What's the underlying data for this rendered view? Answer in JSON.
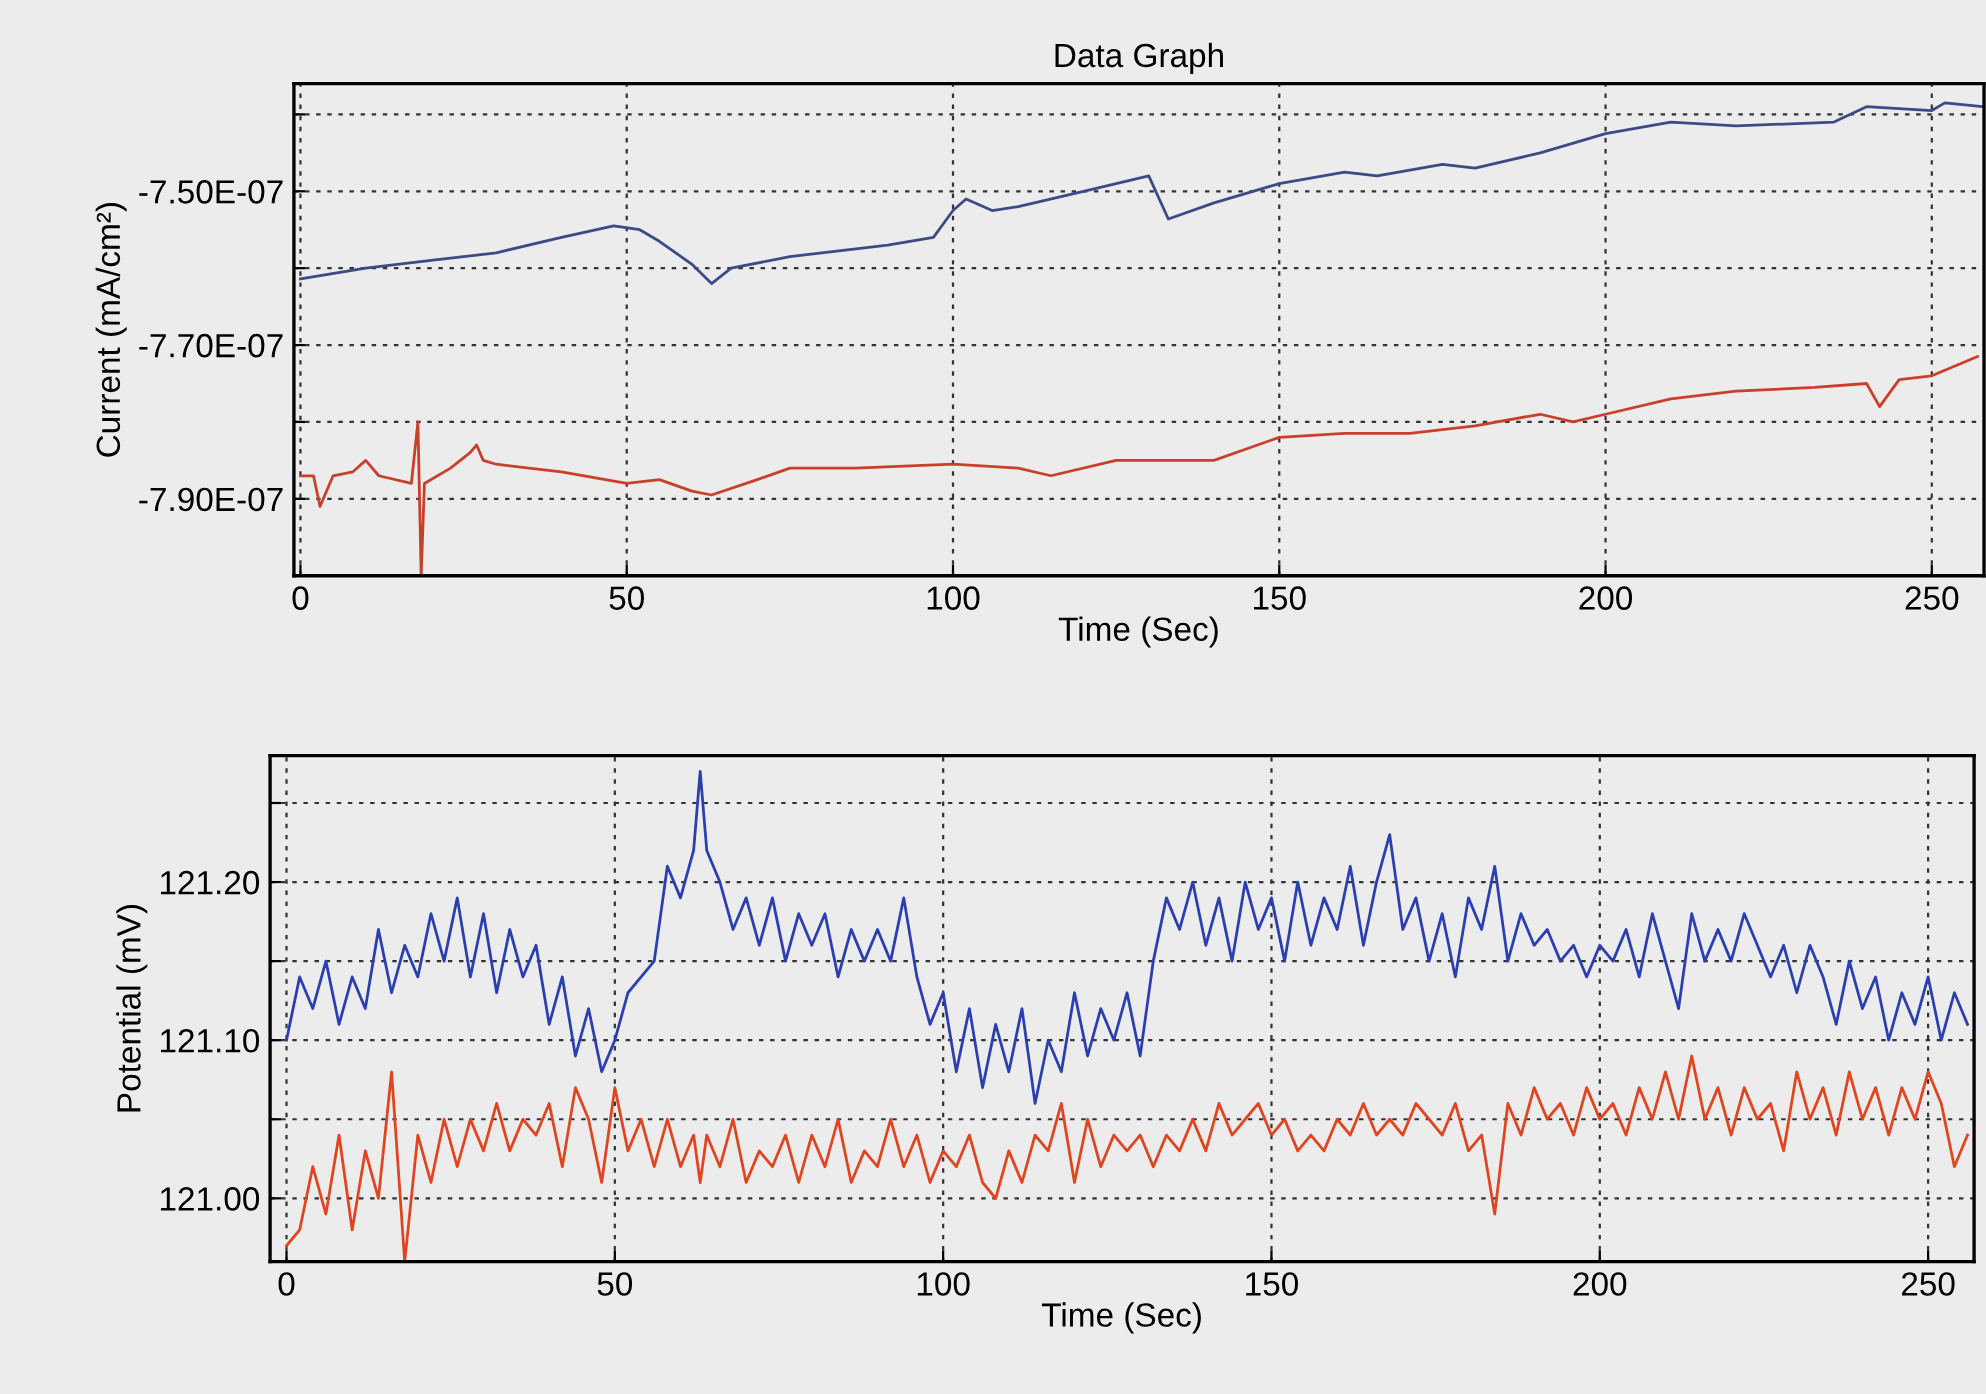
{
  "chart_data": [
    {
      "type": "line",
      "title": "Data Graph",
      "xlabel": "Time (Sec)",
      "ylabel": "Current (mA/cm²)",
      "grid": true,
      "xlim": [
        -1,
        258
      ],
      "xticks": [
        0,
        50,
        100,
        150,
        200,
        250
      ],
      "ylim": [
        -8e-07,
        -7.36e-07
      ],
      "yticks": [
        {
          "value": -7.9e-07,
          "label": "-7.90E-07"
        },
        {
          "value": -7.8e-07,
          "label": null
        },
        {
          "value": -7.7e-07,
          "label": "-7.70E-07"
        },
        {
          "value": -7.6e-07,
          "label": null
        },
        {
          "value": -7.5e-07,
          "label": "-7.50E-07"
        },
        {
          "value": -7.4e-07,
          "label": null
        }
      ],
      "series": [
        {
          "color": "#3c4a86",
          "x": [
            0,
            10,
            20,
            30,
            40,
            48,
            52,
            55,
            60,
            63,
            66,
            75,
            90,
            97,
            100,
            102,
            106,
            110,
            120,
            130,
            133,
            140,
            150,
            160,
            165,
            175,
            180,
            190,
            200,
            210,
            220,
            235,
            240,
            250,
            252,
            258
          ],
          "values": [
            -7.614e-07,
            -7.6e-07,
            -7.59e-07,
            -7.58e-07,
            -7.56e-07,
            -7.545e-07,
            -7.55e-07,
            -7.565e-07,
            -7.595e-07,
            -7.62e-07,
            -7.6e-07,
            -7.585e-07,
            -7.57e-07,
            -7.56e-07,
            -7.525e-07,
            -7.51e-07,
            -7.525e-07,
            -7.52e-07,
            -7.5e-07,
            -7.48e-07,
            -7.536e-07,
            -7.515e-07,
            -7.49e-07,
            -7.475e-07,
            -7.48e-07,
            -7.465e-07,
            -7.47e-07,
            -7.45e-07,
            -7.425e-07,
            -7.41e-07,
            -7.415e-07,
            -7.41e-07,
            -7.39e-07,
            -7.395e-07,
            -7.385e-07,
            -7.39e-07
          ]
        },
        {
          "color": "#c8402a",
          "x": [
            0,
            2,
            3,
            5,
            8,
            10,
            12,
            17,
            18,
            18.5,
            19,
            23,
            26,
            27,
            28,
            30,
            35,
            40,
            50,
            55,
            60,
            63,
            70,
            75,
            85,
            100,
            110,
            115,
            125,
            140,
            150,
            160,
            170,
            180,
            190,
            195,
            200,
            210,
            220,
            232,
            240,
            242,
            245,
            250,
            257
          ],
          "values": [
            -7.87e-07,
            -7.87e-07,
            -7.91e-07,
            -7.87e-07,
            -7.865e-07,
            -7.85e-07,
            -7.87e-07,
            -7.88e-07,
            -7.8e-07,
            -8e-07,
            -7.88e-07,
            -7.86e-07,
            -7.84e-07,
            -7.83e-07,
            -7.85e-07,
            -7.855e-07,
            -7.86e-07,
            -7.865e-07,
            -7.88e-07,
            -7.875e-07,
            -7.89e-07,
            -7.895e-07,
            -7.875e-07,
            -7.86e-07,
            -7.86e-07,
            -7.855e-07,
            -7.86e-07,
            -7.87e-07,
            -7.85e-07,
            -7.85e-07,
            -7.82e-07,
            -7.815e-07,
            -7.815e-07,
            -7.805e-07,
            -7.79e-07,
            -7.8e-07,
            -7.79e-07,
            -7.77e-07,
            -7.76e-07,
            -7.755e-07,
            -7.75e-07,
            -7.78e-07,
            -7.745e-07,
            -7.74e-07,
            -7.715e-07
          ]
        }
      ]
    },
    {
      "type": "line",
      "xlabel": "Time (Sec)",
      "ylabel": "Potential (mV)",
      "grid": true,
      "xlim": [
        -2.5,
        257
      ],
      "xticks": [
        0,
        50,
        100,
        150,
        200,
        250
      ],
      "ylim": [
        120.96,
        121.28
      ],
      "yticks": [
        {
          "value": 121.0,
          "label": "121.00"
        },
        {
          "value": 121.05,
          "label": null
        },
        {
          "value": 121.1,
          "label": "121.10"
        },
        {
          "value": 121.15,
          "label": null
        },
        {
          "value": 121.2,
          "label": "121.20"
        },
        {
          "value": 121.25,
          "label": null
        }
      ],
      "x": [
        0,
        2,
        4,
        6,
        8,
        10,
        12,
        14,
        16,
        18,
        20,
        22,
        24,
        26,
        28,
        30,
        32,
        34,
        36,
        38,
        40,
        42,
        44,
        46,
        48,
        50,
        52,
        54,
        56,
        58,
        60,
        62,
        63,
        64,
        66,
        68,
        70,
        72,
        74,
        76,
        78,
        80,
        82,
        84,
        86,
        88,
        90,
        92,
        94,
        96,
        98,
        100,
        102,
        104,
        106,
        108,
        110,
        112,
        114,
        116,
        118,
        120,
        122,
        124,
        126,
        128,
        130,
        132,
        134,
        136,
        138,
        140,
        142,
        144,
        146,
        148,
        150,
        152,
        154,
        156,
        158,
        160,
        162,
        164,
        166,
        168,
        170,
        172,
        174,
        176,
        178,
        180,
        182,
        184,
        186,
        188,
        190,
        192,
        194,
        196,
        198,
        200,
        202,
        204,
        206,
        208,
        210,
        212,
        214,
        216,
        218,
        220,
        222,
        224,
        226,
        228,
        230,
        232,
        234,
        236,
        238,
        240,
        242,
        244,
        246,
        248,
        250,
        252,
        254,
        256
      ],
      "series": [
        {
          "color": "#2b3fb0",
          "values": [
            121.1,
            121.14,
            121.12,
            121.15,
            121.11,
            121.14,
            121.12,
            121.17,
            121.13,
            121.16,
            121.14,
            121.18,
            121.15,
            121.19,
            121.14,
            121.18,
            121.13,
            121.17,
            121.14,
            121.16,
            121.11,
            121.14,
            121.09,
            121.12,
            121.08,
            121.1,
            121.13,
            121.14,
            121.15,
            121.21,
            121.19,
            121.22,
            121.27,
            121.22,
            121.2,
            121.17,
            121.19,
            121.16,
            121.19,
            121.15,
            121.18,
            121.16,
            121.18,
            121.14,
            121.17,
            121.15,
            121.17,
            121.15,
            121.19,
            121.14,
            121.11,
            121.13,
            121.08,
            121.12,
            121.07,
            121.11,
            121.08,
            121.12,
            121.06,
            121.1,
            121.08,
            121.13,
            121.09,
            121.12,
            121.1,
            121.13,
            121.09,
            121.15,
            121.19,
            121.17,
            121.2,
            121.16,
            121.19,
            121.15,
            121.2,
            121.17,
            121.19,
            121.15,
            121.2,
            121.16,
            121.19,
            121.17,
            121.21,
            121.16,
            121.2,
            121.23,
            121.17,
            121.19,
            121.15,
            121.18,
            121.14,
            121.19,
            121.17,
            121.21,
            121.15,
            121.18,
            121.16,
            121.17,
            121.15,
            121.16,
            121.14,
            121.16,
            121.15,
            121.17,
            121.14,
            121.18,
            121.15,
            121.12,
            121.18,
            121.15,
            121.17,
            121.15,
            121.18,
            121.16,
            121.14,
            121.16,
            121.13,
            121.16,
            121.14,
            121.11,
            121.15,
            121.12,
            121.14,
            121.1,
            121.13,
            121.11,
            121.14,
            121.1,
            121.13,
            121.11
          ]
        },
        {
          "color": "#e0451f",
          "values": [
            120.97,
            120.98,
            121.02,
            120.99,
            121.04,
            120.98,
            121.03,
            121.0,
            121.08,
            120.96,
            121.04,
            121.01,
            121.05,
            121.02,
            121.05,
            121.03,
            121.06,
            121.03,
            121.05,
            121.04,
            121.06,
            121.02,
            121.07,
            121.05,
            121.01,
            121.07,
            121.03,
            121.05,
            121.02,
            121.05,
            121.02,
            121.04,
            121.01,
            121.04,
            121.02,
            121.05,
            121.01,
            121.03,
            121.02,
            121.04,
            121.01,
            121.04,
            121.02,
            121.05,
            121.01,
            121.03,
            121.02,
            121.05,
            121.02,
            121.04,
            121.01,
            121.03,
            121.02,
            121.04,
            121.01,
            121.0,
            121.03,
            121.01,
            121.04,
            121.03,
            121.06,
            121.01,
            121.05,
            121.02,
            121.04,
            121.03,
            121.04,
            121.02,
            121.04,
            121.03,
            121.05,
            121.03,
            121.06,
            121.04,
            121.05,
            121.06,
            121.04,
            121.05,
            121.03,
            121.04,
            121.03,
            121.05,
            121.04,
            121.06,
            121.04,
            121.05,
            121.04,
            121.06,
            121.05,
            121.04,
            121.06,
            121.03,
            121.04,
            120.99,
            121.06,
            121.04,
            121.07,
            121.05,
            121.06,
            121.04,
            121.07,
            121.05,
            121.06,
            121.04,
            121.07,
            121.05,
            121.08,
            121.05,
            121.09,
            121.05,
            121.07,
            121.04,
            121.07,
            121.05,
            121.06,
            121.03,
            121.08,
            121.05,
            121.07,
            121.04,
            121.08,
            121.05,
            121.07,
            121.04,
            121.07,
            121.05,
            121.08,
            121.06,
            121.02,
            121.04
          ]
        }
      ]
    }
  ]
}
